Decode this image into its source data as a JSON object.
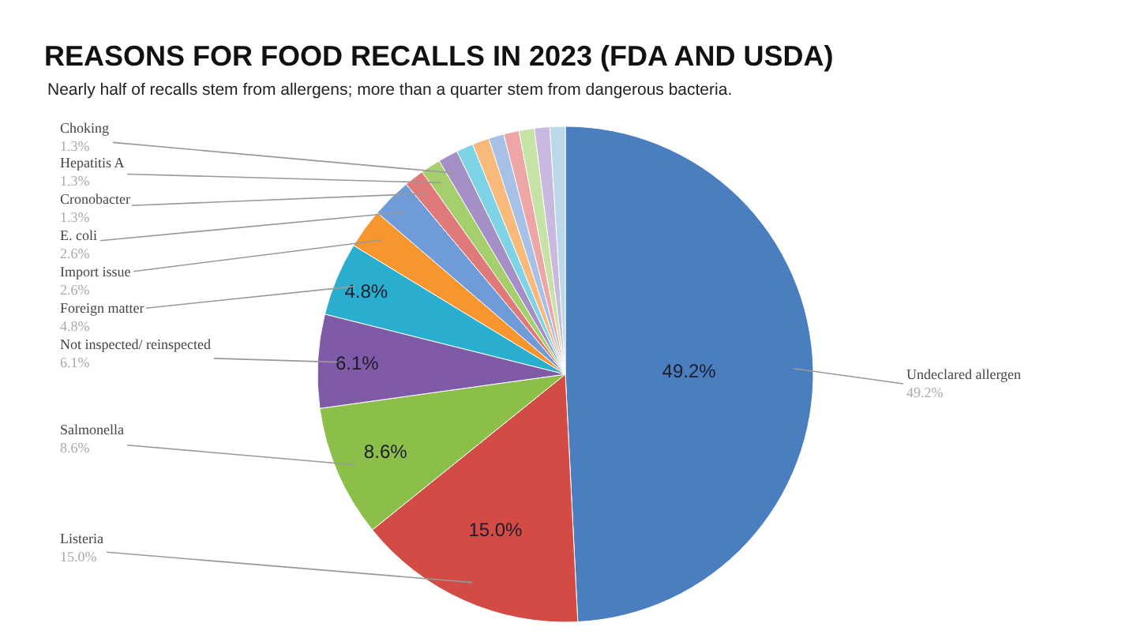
{
  "chart_data": {
    "type": "pie",
    "title": "REASONS FOR FOOD RECALLS IN 2023 (FDA AND USDA)",
    "subtitle": "Nearly half of recalls stem from allergens; more than a quarter stem from dangerous bacteria.",
    "categories": [
      "Undeclared allergen",
      "Listeria",
      "Salmonella",
      "Not inspected/ reinspected",
      "Foreign matter",
      "Import issue",
      "E. coli",
      "Cronobacter",
      "Hepatitis A",
      "Choking",
      null,
      null,
      null,
      null,
      null,
      null,
      null
    ],
    "values": [
      49.2,
      15.0,
      8.6,
      6.1,
      4.8,
      2.6,
      2.6,
      1.3,
      1.3,
      1.3,
      1.1,
      1.1,
      1.0,
      1.0,
      1.0,
      1.0,
      1.0
    ],
    "value_labels": [
      "49.2%",
      "15.0%",
      "8.6%",
      "6.1%",
      "4.8%",
      "2.6%",
      "2.6%",
      "1.3%",
      "1.3%",
      "1.3%",
      null,
      null,
      null,
      null,
      null,
      null,
      null
    ],
    "colors": [
      "#4a7ebf",
      "#d24b45",
      "#8cbf4a",
      "#7f5aa6",
      "#2aaecf",
      "#f7952e",
      "#6f9bd8",
      "#e07a7a",
      "#a5cf6d",
      "#a58fc7",
      "#7fd3e6",
      "#f9b97a",
      "#a6c0e8",
      "#eea5a5",
      "#c6e2a4",
      "#c9b8e0",
      "#bcd9ea"
    ],
    "legend": false
  }
}
